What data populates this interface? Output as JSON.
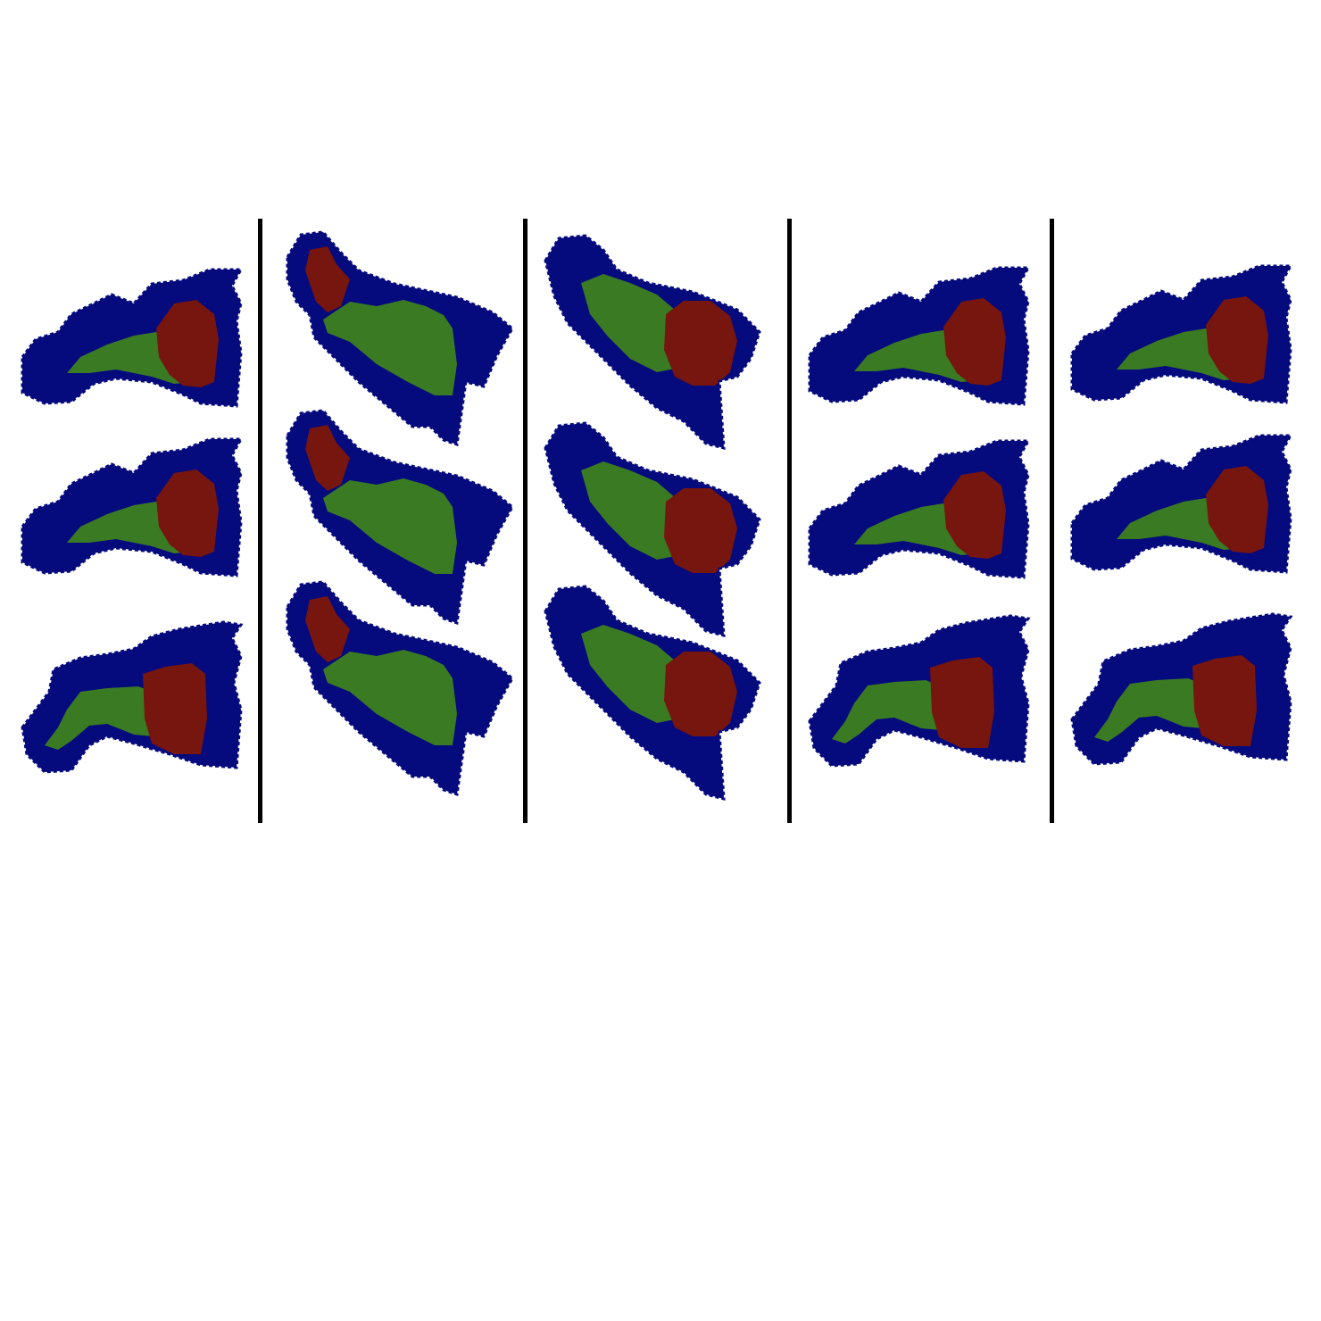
{
  "colors": {
    "background": "#ffffff",
    "outer_region": "#050a7d",
    "middle_region": "#3a7a22",
    "inner_region": "#77150f",
    "divider": "#000000"
  },
  "columns": [
    {
      "id": "col1",
      "items": [
        {
          "variant": "horizontal",
          "red_split": 0.6,
          "red_width": 0.3
        },
        {
          "variant": "horizontal",
          "red_split": 0.52,
          "red_width": 0.3
        },
        {
          "variant": "curled",
          "red_split": 0.58,
          "red_width": 0.32
        }
      ]
    },
    {
      "id": "col2",
      "items": [
        {
          "variant": "tilted-down",
          "red_split": 0.18,
          "red_width": 0.2
        },
        {
          "variant": "tilted-down",
          "red_split": 0.18,
          "red_width": 0.2
        },
        {
          "variant": "tilted-down",
          "red_split": 0.16,
          "red_width": 0.18
        }
      ]
    },
    {
      "id": "col3",
      "items": [
        {
          "variant": "tilted-down-bulb",
          "red_split": 0.55,
          "red_width": 0.35
        },
        {
          "variant": "tilted-down-bulb",
          "red_split": 0.5,
          "red_width": 0.4
        },
        {
          "variant": "tilted-down-bulb",
          "red_split": 0.57,
          "red_width": 0.3
        }
      ]
    },
    {
      "id": "col4",
      "items": [
        {
          "variant": "horizontal",
          "red_split": 0.57,
          "red_width": 0.33
        },
        {
          "variant": "horizontal",
          "red_split": 0.55,
          "red_width": 0.35
        },
        {
          "variant": "curled",
          "red_split": 0.55,
          "red_width": 0.35
        }
      ]
    },
    {
      "id": "col5",
      "items": [
        {
          "variant": "horizontal",
          "red_split": 0.58,
          "red_width": 0.3
        },
        {
          "variant": "horizontal",
          "red_split": 0.56,
          "red_width": 0.32
        },
        {
          "variant": "curled",
          "red_split": 0.6,
          "red_width": 0.25
        }
      ]
    }
  ]
}
